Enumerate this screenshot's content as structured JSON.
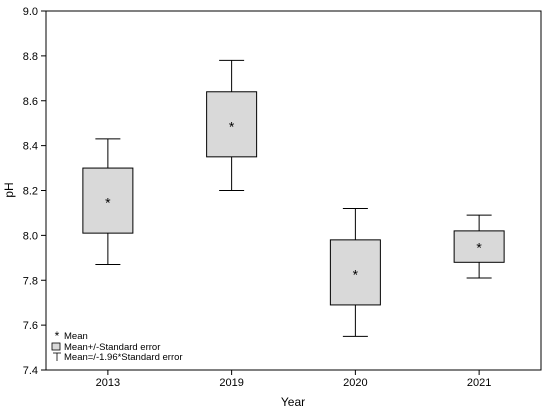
{
  "chart_data": {
    "type": "box",
    "xlabel": "Year",
    "ylabel": "pH",
    "ylim": [
      7.4,
      9.0
    ],
    "yticks": [
      "7.4",
      "7.6",
      "7.8",
      "8.0",
      "8.2",
      "8.4",
      "8.6",
      "8.8",
      "9.0"
    ],
    "categories": [
      "2013",
      "2019",
      "2020",
      "2021"
    ],
    "mean": [
      8.15,
      8.49,
      7.83,
      7.95
    ],
    "se_box": [
      [
        8.01,
        8.3
      ],
      [
        8.35,
        8.64
      ],
      [
        7.69,
        7.98
      ],
      [
        7.88,
        8.02
      ]
    ],
    "ci_whisker": [
      [
        7.87,
        8.43
      ],
      [
        8.2,
        8.78
      ],
      [
        7.55,
        8.12
      ],
      [
        7.81,
        8.09
      ]
    ],
    "box_fill": "#d9d9d9",
    "grid": false,
    "legend": {
      "placement": "bottom-left",
      "items": [
        "Mean",
        "Mean+/-Standard error",
        "Mean=/-1.96*Standard error"
      ]
    }
  }
}
